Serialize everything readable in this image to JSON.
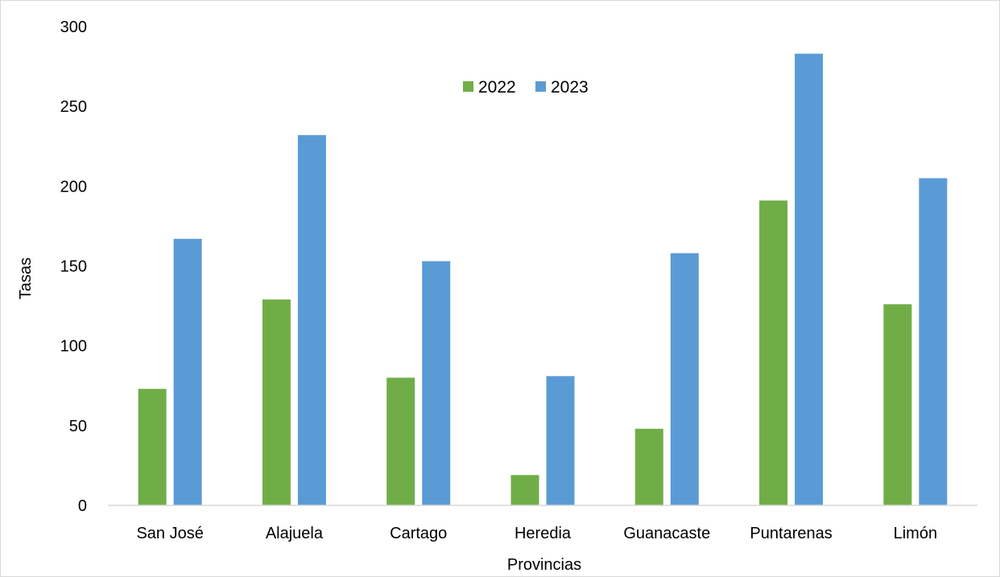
{
  "chart_data": {
    "type": "bar",
    "categories": [
      "San José",
      "Alajuela",
      "Cartago",
      "Heredia",
      "Guanacaste",
      "Puntarenas",
      "Limón"
    ],
    "series": [
      {
        "name": "2022",
        "color": "#70ad47",
        "values": [
          73,
          129,
          80,
          19,
          48,
          191,
          126
        ]
      },
      {
        "name": "2023",
        "color": "#5b9bd5",
        "values": [
          167,
          232,
          153,
          81,
          158,
          283,
          205
        ]
      }
    ],
    "title": "",
    "xlabel": "Provincias",
    "ylabel": "Tasas",
    "ylim": [
      0,
      300
    ],
    "yticks": [
      "0",
      "50",
      "100",
      "150",
      "200",
      "250",
      "300"
    ],
    "grid": false,
    "legend_position": "top-center"
  }
}
